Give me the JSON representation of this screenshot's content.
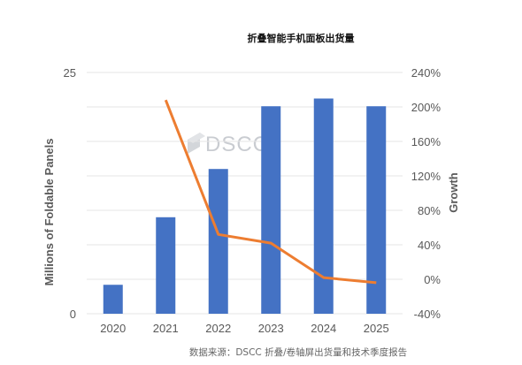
{
  "chart_data": {
    "type": "bar",
    "title": "折叠智能手机面板出货量",
    "categories": [
      "2020",
      "2021",
      "2022",
      "2023",
      "2024",
      "2025"
    ],
    "series": [
      {
        "values": [
          3,
          10,
          15,
          21.5,
          22.3,
          21.5
        ],
        "type": "bar",
        "axis": "left",
        "color": "#4472c4"
      },
      {
        "values": [
          null,
          208,
          52,
          42,
          2,
          -4
        ],
        "type": "line",
        "axis": "right",
        "color": "#ed7d31"
      }
    ],
    "ylabel": "Millions of Foldable Panels",
    "ylim": [
      0,
      25
    ],
    "yticks": [
      "0",
      "25"
    ],
    "y2label": "Growth",
    "y2lim": [
      -40,
      240
    ],
    "y2ticks": [
      "-40%",
      "0%",
      "40%",
      "80%",
      "120%",
      "160%",
      "200%",
      "240%"
    ],
    "grid": true,
    "watermark": "DSCC",
    "source": "数据来源：DSCC 折叠/卷轴屏出货量和技术季度报告"
  }
}
